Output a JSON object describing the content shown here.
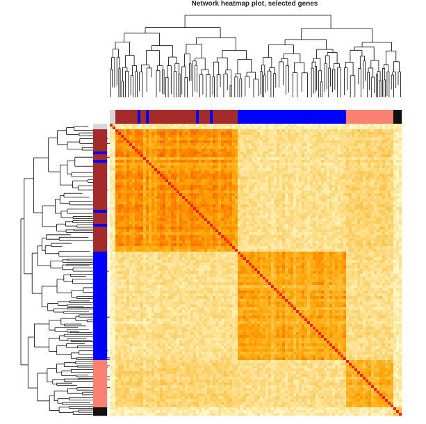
{
  "chart_data": {
    "type": "heatmap",
    "title": "Network heatmap plot, selected genes",
    "xlabel": "",
    "ylabel": "",
    "color_scale": {
      "low": "#fff8c8",
      "mid": "#ffa500",
      "high": "#ff2200",
      "range": [
        0,
        1
      ]
    },
    "modules": [
      {
        "name": "light-gray",
        "color": "#d8d8d8",
        "fraction": 0.02
      },
      {
        "name": "brown",
        "color": "#a52a2a",
        "fraction": 0.42
      },
      {
        "name": "blue",
        "color": "#0000ff",
        "fraction": 0.37
      },
      {
        "name": "salmon",
        "color": "#fa8072",
        "fraction": 0.16
      },
      {
        "name": "black",
        "color": "#111111",
        "fraction": 0.03
      }
    ],
    "module_correlation": [
      [
        0.15,
        0.1,
        0.05,
        0.06,
        0.05
      ],
      [
        0.1,
        0.72,
        0.2,
        0.28,
        0.1
      ],
      [
        0.05,
        0.2,
        0.66,
        0.22,
        0.1
      ],
      [
        0.06,
        0.28,
        0.22,
        0.55,
        0.1
      ],
      [
        0.05,
        0.1,
        0.1,
        0.1,
        0.4
      ]
    ],
    "dendrogram": {
      "clusters": 4
    }
  }
}
